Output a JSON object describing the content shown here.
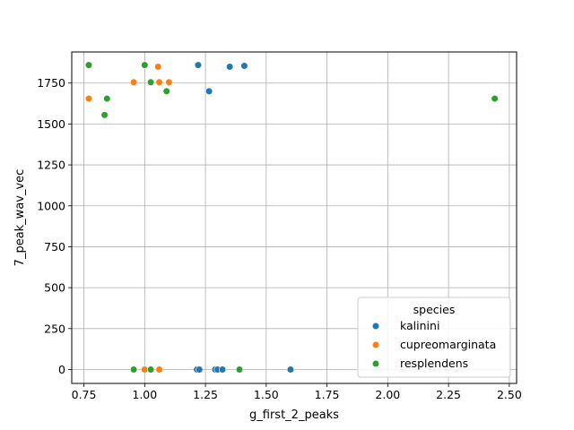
{
  "chart_data": {
    "type": "scatter",
    "xlabel": "g_first_2_peaks",
    "ylabel": "7_peak_wav_vec",
    "xlim": [
      0.7,
      2.53
    ],
    "ylim": [
      -85,
      1940
    ],
    "xticks": [
      "0.75",
      "1.00",
      "1.25",
      "1.50",
      "1.75",
      "2.00",
      "2.25",
      "2.50"
    ],
    "yticks": [
      "0",
      "250",
      "500",
      "750",
      "1000",
      "1250",
      "1500",
      "1750"
    ],
    "grid": true,
    "legend": {
      "title": "species",
      "placement": "lower-right"
    },
    "series": [
      {
        "name": "kalinini",
        "color": "#1f77b4",
        "points": [
          [
            1.22,
            1860
          ],
          [
            1.35,
            1850
          ],
          [
            1.41,
            1855
          ],
          [
            1.265,
            1700
          ],
          [
            1.215,
            0
          ],
          [
            1.225,
            0
          ],
          [
            1.29,
            0
          ],
          [
            1.3,
            0
          ],
          [
            1.32,
            0
          ],
          [
            1.6,
            0
          ]
        ]
      },
      {
        "name": "cupreomarginata",
        "color": "#ff7f0e",
        "points": [
          [
            1.055,
            1850
          ],
          [
            0.955,
            1755
          ],
          [
            1.06,
            1755
          ],
          [
            1.1,
            1755
          ],
          [
            0.77,
            1655
          ],
          [
            1.0,
            0
          ],
          [
            1.06,
            0
          ]
        ]
      },
      {
        "name": "resplendens",
        "color": "#2ca02c",
        "points": [
          [
            0.77,
            1860
          ],
          [
            1.0,
            1860
          ],
          [
            1.025,
            1755
          ],
          [
            1.09,
            1700
          ],
          [
            0.845,
            1655
          ],
          [
            0.835,
            1555
          ],
          [
            2.44,
            1655
          ],
          [
            0.955,
            0
          ],
          [
            1.025,
            0
          ],
          [
            1.39,
            0
          ]
        ]
      }
    ]
  }
}
